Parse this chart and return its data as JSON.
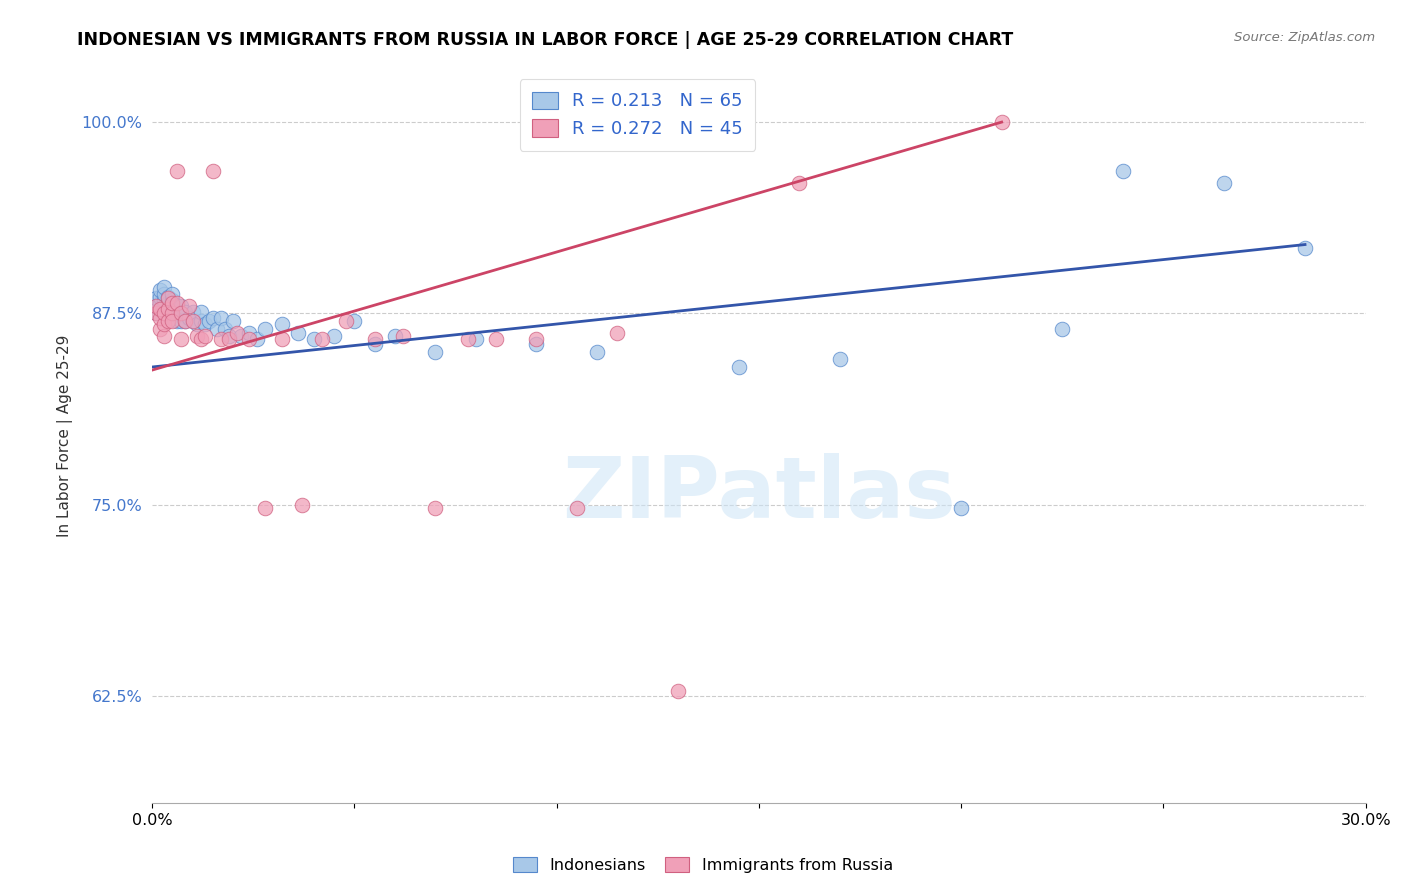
{
  "title": "INDONESIAN VS IMMIGRANTS FROM RUSSIA IN LABOR FORCE | AGE 25-29 CORRELATION CHART",
  "source": "Source: ZipAtlas.com",
  "ylabel": "In Labor Force | Age 25-29",
  "xlim": [
    0.0,
    0.3
  ],
  "ylim": [
    0.555,
    1.035
  ],
  "yticks": [
    0.625,
    0.75,
    0.875,
    1.0
  ],
  "ytick_labels": [
    "62.5%",
    "75.0%",
    "87.5%",
    "100.0%"
  ],
  "xticks": [
    0.0,
    0.05,
    0.1,
    0.15,
    0.2,
    0.25,
    0.3
  ],
  "xtick_labels": [
    "0.0%",
    "",
    "",
    "",
    "",
    "",
    "30.0%"
  ],
  "blue_fill": "#A8C8E8",
  "blue_edge": "#5588CC",
  "pink_fill": "#F0A0B8",
  "pink_edge": "#D06080",
  "blue_line": "#3355AA",
  "pink_line": "#CC4466",
  "watermark": "ZIPatlas",
  "indonesians_x": [
    0.001,
    0.001,
    0.001,
    0.002,
    0.002,
    0.002,
    0.002,
    0.003,
    0.003,
    0.003,
    0.003,
    0.003,
    0.004,
    0.004,
    0.004,
    0.004,
    0.005,
    0.005,
    0.005,
    0.005,
    0.005,
    0.006,
    0.006,
    0.006,
    0.007,
    0.007,
    0.007,
    0.008,
    0.008,
    0.009,
    0.01,
    0.01,
    0.011,
    0.012,
    0.012,
    0.013,
    0.014,
    0.015,
    0.016,
    0.017,
    0.018,
    0.019,
    0.02,
    0.022,
    0.024,
    0.026,
    0.028,
    0.032,
    0.036,
    0.04,
    0.045,
    0.05,
    0.055,
    0.06,
    0.07,
    0.08,
    0.095,
    0.11,
    0.145,
    0.17,
    0.2,
    0.225,
    0.24,
    0.265,
    0.285
  ],
  "indonesians_y": [
    0.875,
    0.88,
    0.885,
    0.878,
    0.882,
    0.886,
    0.89,
    0.876,
    0.88,
    0.884,
    0.888,
    0.892,
    0.874,
    0.878,
    0.882,
    0.886,
    0.872,
    0.876,
    0.88,
    0.884,
    0.888,
    0.87,
    0.875,
    0.88,
    0.87,
    0.875,
    0.88,
    0.87,
    0.876,
    0.872,
    0.87,
    0.876,
    0.868,
    0.87,
    0.876,
    0.868,
    0.87,
    0.872,
    0.865,
    0.872,
    0.865,
    0.86,
    0.87,
    0.86,
    0.862,
    0.858,
    0.865,
    0.868,
    0.862,
    0.858,
    0.86,
    0.87,
    0.855,
    0.86,
    0.85,
    0.858,
    0.855,
    0.85,
    0.84,
    0.845,
    0.748,
    0.865,
    0.968,
    0.96,
    0.918
  ],
  "russia_x": [
    0.001,
    0.001,
    0.002,
    0.002,
    0.002,
    0.003,
    0.003,
    0.003,
    0.004,
    0.004,
    0.004,
    0.005,
    0.005,
    0.005,
    0.006,
    0.006,
    0.007,
    0.007,
    0.008,
    0.009,
    0.01,
    0.011,
    0.012,
    0.013,
    0.015,
    0.017,
    0.019,
    0.021,
    0.024,
    0.028,
    0.032,
    0.037,
    0.042,
    0.048,
    0.055,
    0.062,
    0.07,
    0.078,
    0.085,
    0.095,
    0.105,
    0.115,
    0.13,
    0.16,
    0.21
  ],
  "russia_y": [
    0.875,
    0.88,
    0.865,
    0.872,
    0.878,
    0.86,
    0.868,
    0.875,
    0.878,
    0.885,
    0.87,
    0.875,
    0.882,
    0.87,
    0.968,
    0.882,
    0.858,
    0.875,
    0.87,
    0.88,
    0.87,
    0.86,
    0.858,
    0.86,
    0.968,
    0.858,
    0.858,
    0.862,
    0.858,
    0.748,
    0.858,
    0.75,
    0.858,
    0.87,
    0.858,
    0.86,
    0.748,
    0.858,
    0.858,
    0.858,
    0.748,
    0.862,
    0.628,
    0.96,
    1.0
  ]
}
